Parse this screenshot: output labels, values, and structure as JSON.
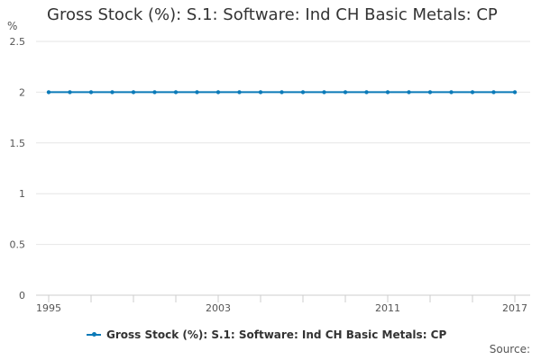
{
  "chart_data": {
    "type": "line",
    "title": "Gross Stock (%): S.1: Software: Ind CH Basic Metals: CP",
    "xlabel": "",
    "ylabel": "%",
    "x": [
      1995,
      1996,
      1997,
      1998,
      1999,
      2000,
      2001,
      2002,
      2003,
      2004,
      2005,
      2006,
      2007,
      2008,
      2009,
      2010,
      2011,
      2012,
      2013,
      2014,
      2015,
      2016,
      2017
    ],
    "xticks_labeled": [
      1995,
      2003,
      2011,
      2017
    ],
    "ylim": [
      0,
      2.5
    ],
    "yticks": [
      "0",
      "0.5",
      "1",
      "1.5",
      "2",
      "2.5"
    ],
    "grid": true,
    "legend_position": "bottom",
    "series": [
      {
        "name": "Gross Stock (%): S.1: Software: Ind CH Basic Metals: CP",
        "color": "#0b7ab8",
        "values": [
          2,
          2,
          2,
          2,
          2,
          2,
          2,
          2,
          2,
          2,
          2,
          2,
          2,
          2,
          2,
          2,
          2,
          2,
          2,
          2,
          2,
          2,
          2
        ]
      }
    ]
  },
  "footer": {
    "source_label": "Source:"
  }
}
